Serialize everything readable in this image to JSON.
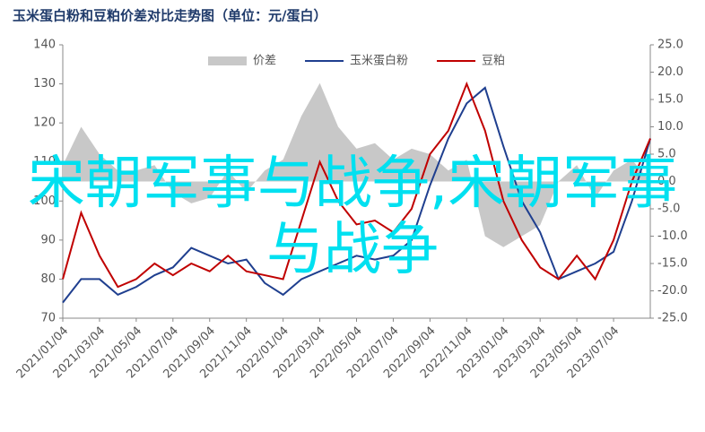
{
  "chart_data": {
    "type": "line",
    "title": "玉米蛋白粉和豆粕价差对比走势图（单位：元/蛋白）",
    "overlay_text": "宋朝军事与战争,宋朝军事与战争",
    "categories": [
      "2021/01/04",
      null,
      "2021/03/04",
      null,
      "2021/05/04",
      null,
      "2021/07/04",
      null,
      "2021/09/04",
      null,
      "2021/11/04",
      null,
      "2022/01/04",
      null,
      "2022/03/04",
      null,
      "2022/05/04",
      null,
      "2022/07/04",
      null,
      "2022/09/04",
      null,
      "2022/11/04",
      null,
      "2023/01/04",
      null,
      "2023/03/04",
      null,
      "2023/05/04",
      null,
      "2023/07/04",
      null,
      null
    ],
    "series": [
      {
        "name": "价差",
        "color": "#c8c8c8",
        "axis": "y2",
        "kind": "area",
        "values": [
          3,
          10,
          5,
          2,
          2,
          3,
          -2,
          -4,
          -3,
          2,
          -2,
          2,
          4,
          12,
          18,
          10,
          6,
          7,
          4,
          6,
          5,
          2,
          4,
          -10,
          -12,
          -10,
          -8,
          0,
          3,
          -3,
          2,
          4,
          0
        ]
      },
      {
        "name": "玉米蛋白粉",
        "color": "#1f3f8f",
        "values": [
          74,
          80,
          80,
          76,
          78,
          81,
          83,
          88,
          86,
          84,
          85,
          79,
          76,
          80,
          82,
          84,
          86,
          85,
          86,
          90,
          104,
          116,
          125,
          129,
          114,
          100,
          92,
          80,
          82,
          84,
          87,
          100,
          116
        ]
      },
      {
        "name": "豆粕",
        "color": "#c00000",
        "values": [
          80,
          97,
          86,
          78,
          80,
          84,
          81,
          84,
          82,
          86,
          82,
          81,
          80,
          95,
          110,
          100,
          94,
          95,
          92,
          98,
          112,
          118,
          130,
          118,
          100,
          90,
          83,
          80,
          86,
          80,
          90,
          105,
          116
        ]
      }
    ],
    "ylim": [
      70,
      140
    ],
    "yticks": [
      70,
      80,
      90,
      100,
      110,
      120,
      130,
      140
    ],
    "y2lim": [
      -25,
      25
    ],
    "y2ticks": [
      {
        "value": -25,
        "label": "-25.0"
      },
      {
        "value": -20,
        "label": "-20.0"
      },
      {
        "value": -15,
        "label": "-15.0"
      },
      {
        "value": -10,
        "label": "-10.0"
      },
      {
        "value": -5,
        "label": "-5.0"
      },
      {
        "value": 0,
        "label": "0.0"
      },
      {
        "value": 5,
        "label": "5.0"
      },
      {
        "value": 10,
        "label": "10.0"
      },
      {
        "value": 15,
        "label": "15.0"
      },
      {
        "value": 20,
        "label": "20.0"
      },
      {
        "value": 25,
        "label": "25.0"
      }
    ],
    "legend": "top"
  }
}
